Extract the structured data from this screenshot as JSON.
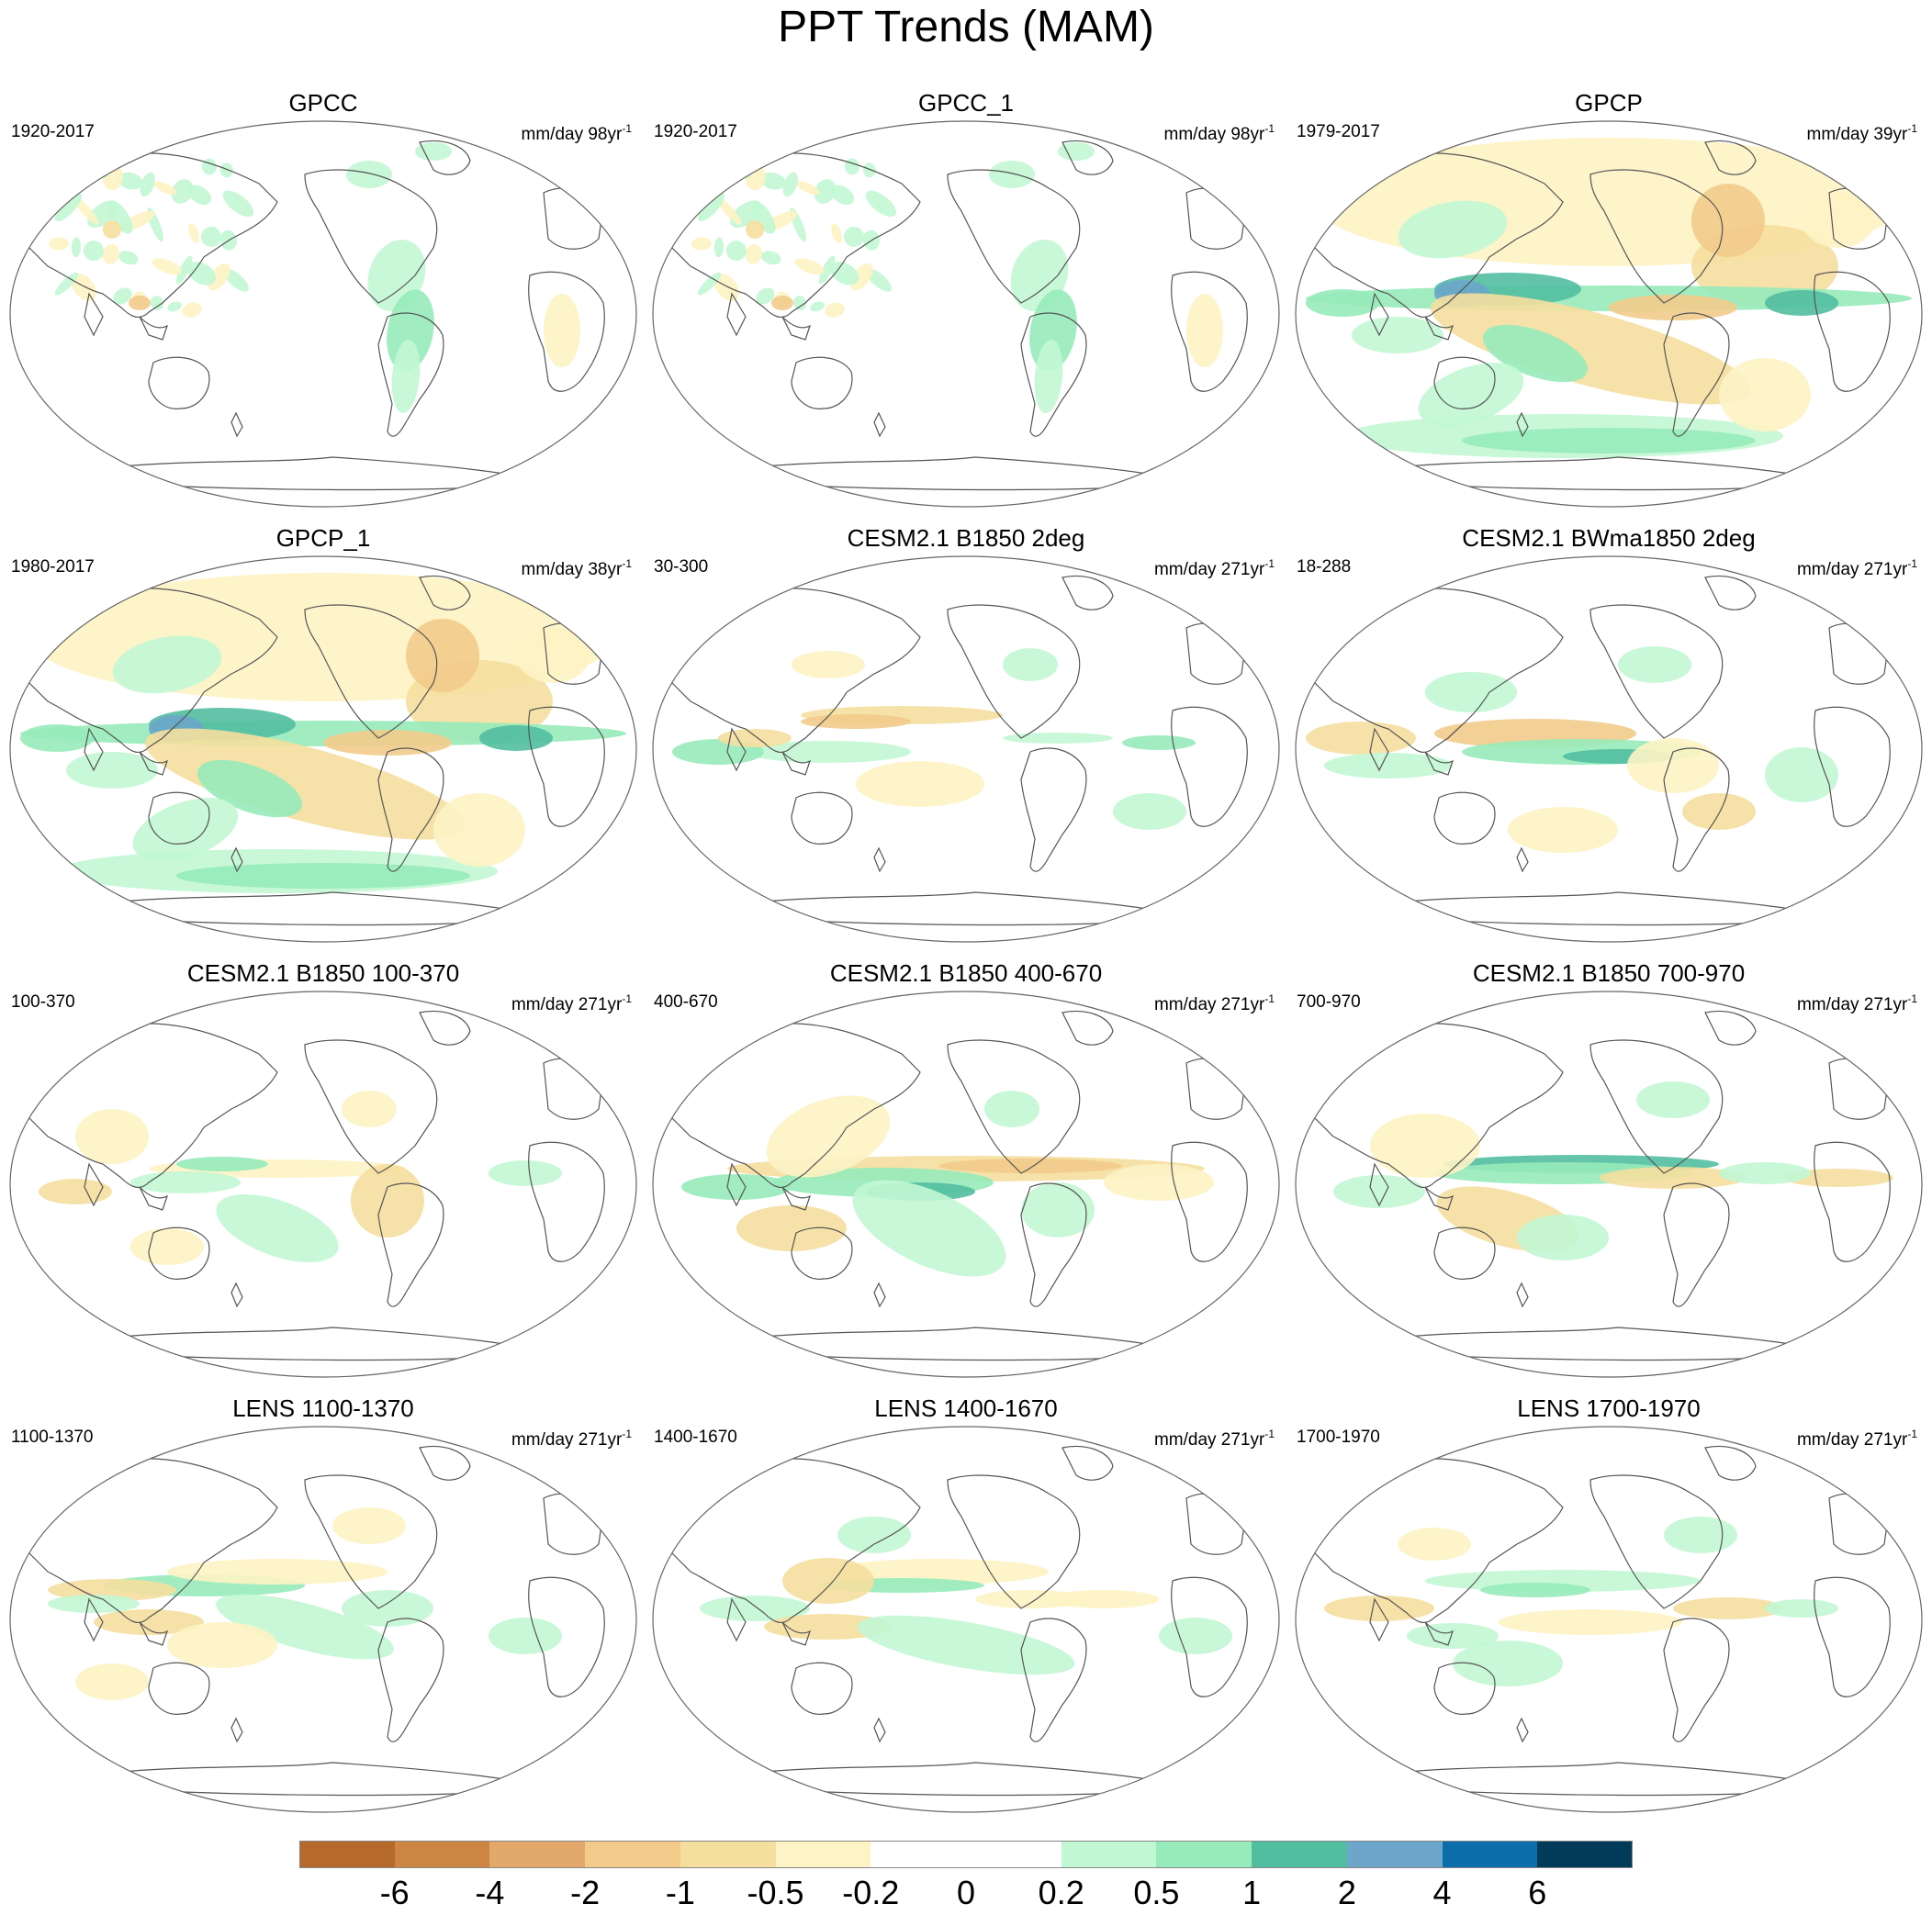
{
  "title": "PPT Trends (MAM)",
  "panels": [
    {
      "title": "GPCC",
      "period": "1920-2017",
      "units": "mm/day 98yr",
      "units_sup": "-1",
      "pattern": "gpcc"
    },
    {
      "title": "GPCC_1",
      "period": "1920-2017",
      "units": "mm/day 98yr",
      "units_sup": "-1",
      "pattern": "gpcc"
    },
    {
      "title": "GPCP",
      "period": "1979-2017",
      "units": "mm/day 39yr",
      "units_sup": "-1",
      "pattern": "gpcp"
    },
    {
      "title": "GPCP_1",
      "period": "1980-2017",
      "units": "mm/day 38yr",
      "units_sup": "-1",
      "pattern": "gpcp"
    },
    {
      "title": "CESM2.1 B1850 2deg",
      "period": "30-300",
      "units": "mm/day 271yr",
      "units_sup": "-1",
      "pattern": "model_a"
    },
    {
      "title": "CESM2.1 BWma1850 2deg",
      "period": "18-288",
      "units": "mm/day 271yr",
      "units_sup": "-1",
      "pattern": "model_b"
    },
    {
      "title": "CESM2.1 B1850 100-370",
      "period": "100-370",
      "units": "mm/day 271yr",
      "units_sup": "-1",
      "pattern": "model_c"
    },
    {
      "title": "CESM2.1 B1850 400-670",
      "period": "400-670",
      "units": "mm/day 271yr",
      "units_sup": "-1",
      "pattern": "model_d"
    },
    {
      "title": "CESM2.1 B1850 700-970",
      "period": "700-970",
      "units": "mm/day 271yr",
      "units_sup": "-1",
      "pattern": "model_e"
    },
    {
      "title": "LENS 1100-1370",
      "period": "1100-1370",
      "units": "mm/day 271yr",
      "units_sup": "-1",
      "pattern": "lens_a"
    },
    {
      "title": "LENS 1400-1670",
      "period": "1400-1670",
      "units": "mm/day 271yr",
      "units_sup": "-1",
      "pattern": "lens_b"
    },
    {
      "title": "LENS 1700-1970",
      "period": "1700-1970",
      "units": "mm/day 271yr",
      "units_sup": "-1",
      "pattern": "lens_c"
    }
  ],
  "colorbar": {
    "labels": [
      "-6",
      "-4",
      "-2",
      "-1",
      "-0.5",
      "-0.2",
      "0",
      "0.2",
      "0.5",
      "1",
      "2",
      "4",
      "6"
    ],
    "colors": [
      "#b5692a",
      "#cd8641",
      "#e2a96a",
      "#f2cb8b",
      "#f5df9e",
      "#fdf3c4",
      "#ffffff",
      "#ffffff",
      "#c2f7d4",
      "#97ebba",
      "#52bea0",
      "#6ca6ca",
      "#0b6eab",
      "#023a5a"
    ]
  }
}
